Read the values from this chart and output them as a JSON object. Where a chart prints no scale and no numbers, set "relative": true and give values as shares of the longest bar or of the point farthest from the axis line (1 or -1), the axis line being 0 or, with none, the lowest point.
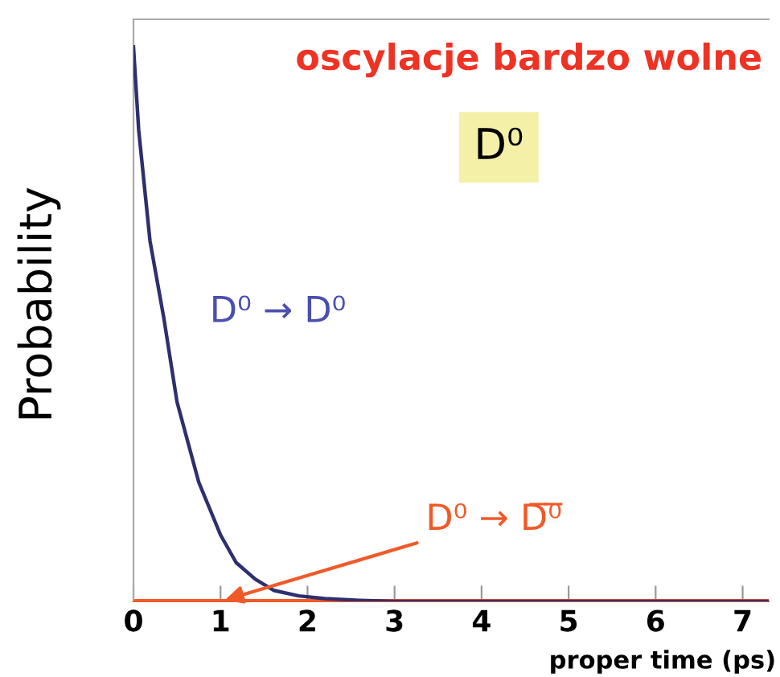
{
  "chart_data": {
    "type": "line",
    "title": "oscylacje bardzo wolne",
    "xlabel": "proper time (ps)",
    "ylabel": "Probability",
    "annotations": [
      "D⁰"
    ],
    "relative": true,
    "xlim": [
      0,
      7.3
    ],
    "xticks": [
      0,
      1,
      2,
      3,
      4,
      5,
      6,
      7
    ],
    "tick_labels": "x",
    "grid": false,
    "legend": false,
    "marker": "none",
    "line_style": "solid",
    "series": [
      {
        "name": "D⁰ → D⁰",
        "color": "#2e2f6e",
        "x": [
          0,
          0.06,
          0.19,
          0.35,
          0.5,
          0.75,
          1.0,
          1.18,
          1.4,
          1.61,
          1.9,
          2.2,
          2.6,
          3.0,
          4.0,
          5.0,
          6.0,
          7.3
        ],
        "values": [
          1.0,
          0.85,
          0.65,
          0.51,
          0.36,
          0.215,
          0.12,
          0.07,
          0.04,
          0.02,
          0.01,
          0.005,
          0.002,
          0,
          0,
          0,
          0,
          0
        ]
      },
      {
        "name": "D⁰ → D̅⁰̅",
        "color": "#f05a28",
        "x": [
          0,
          1,
          7.3
        ],
        "values": [
          0,
          0,
          0
        ]
      }
    ]
  }
}
